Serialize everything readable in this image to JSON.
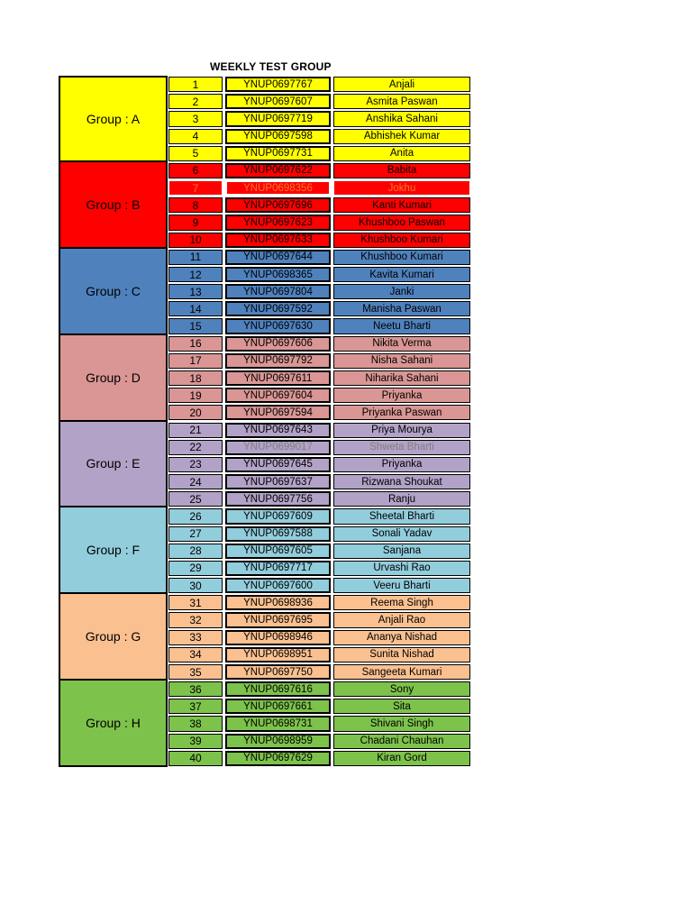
{
  "page": {
    "title": "WEEKLY TEST GROUP"
  },
  "table": {
    "groups": [
      {
        "label": "Group : A",
        "color": "#FFFF00",
        "rows": [
          {
            "no": "1",
            "id": "YNUP0697767",
            "name": "Anjali"
          },
          {
            "no": "2",
            "id": "YNUP0697607",
            "name": "Asmita Paswan"
          },
          {
            "no": "3",
            "id": "YNUP0697719",
            "name": "Anshika Sahani"
          },
          {
            "no": "4",
            "id": "YNUP0697598",
            "name": "Abhishek Kumar"
          },
          {
            "no": "5",
            "id": "YNUP0697731",
            "name": "Anita"
          }
        ]
      },
      {
        "label": "Group : B",
        "color": "#FF0000",
        "rows": [
          {
            "no": "6",
            "id": "YNUP0697622",
            "name": "Babita"
          },
          {
            "no": "7",
            "id": "YNUP0698356",
            "name": "Jokhu",
            "num_color": "#ED7D31",
            "id_color": "#ED7D31",
            "name_color": "#ED7D31",
            "border_color": "#FFFFFF"
          },
          {
            "no": "8",
            "id": "YNUP0697696",
            "name": "Kanti Kumari"
          },
          {
            "no": "9",
            "id": "YNUP0697623",
            "name": "Khushboo Paswan"
          },
          {
            "no": "10",
            "id": "YNUP0697633",
            "name": "Khushboo Kumari"
          }
        ]
      },
      {
        "label": "Group : C",
        "color": "#4F81BD",
        "rows": [
          {
            "no": "11",
            "id": "YNUP0697644",
            "name": "Khushboo Kumari"
          },
          {
            "no": "12",
            "id": "YNUP0698365",
            "name": "Kavita Kumari"
          },
          {
            "no": "13",
            "id": "YNUP0697804",
            "name": "Janki"
          },
          {
            "no": "14",
            "id": "YNUP0697592",
            "name": "Manisha Paswan"
          },
          {
            "no": "15",
            "id": "YNUP0697630",
            "name": "Neetu Bharti"
          }
        ]
      },
      {
        "label": "Group : D",
        "color": "#D99694",
        "rows": [
          {
            "no": "16",
            "id": "YNUP0697606",
            "name": "Nikita Verma"
          },
          {
            "no": "17",
            "id": "YNUP0697792",
            "name": "Nisha Sahani"
          },
          {
            "no": "18",
            "id": "YNUP0697611",
            "name": "Niharika Sahani"
          },
          {
            "no": "19",
            "id": "YNUP0697604",
            "name": "Priyanka"
          },
          {
            "no": "20",
            "id": "YNUP0697594",
            "name": "Priyanka Paswan"
          }
        ]
      },
      {
        "label": "Group : E",
        "color": "#B2A2C7",
        "rows": [
          {
            "no": "21",
            "id": "YNUP0697643",
            "name": "Priya Mourya"
          },
          {
            "no": "22",
            "id": "YNUP0699017",
            "name": "Shweta Bharti",
            "id_color": "#808080",
            "name_color": "#808080"
          },
          {
            "no": "23",
            "id": "YNUP0697645",
            "name": "Priyanka"
          },
          {
            "no": "24",
            "id": "YNUP0697637",
            "name": "Rizwana Shoukat"
          },
          {
            "no": "25",
            "id": "YNUP0697756",
            "name": "Ranju"
          }
        ]
      },
      {
        "label": "Group : F",
        "color": "#92CDDC",
        "rows": [
          {
            "no": "26",
            "id": "YNUP0697609",
            "name": "Sheetal Bharti"
          },
          {
            "no": "27",
            "id": "YNUP0697588",
            "name": "Sonali Yadav"
          },
          {
            "no": "28",
            "id": "YNUP0697605",
            "name": "Sanjana"
          },
          {
            "no": "29",
            "id": "YNUP0697717",
            "name": "Urvashi Rao"
          },
          {
            "no": "30",
            "id": "YNUP0697600",
            "name": "Veeru Bharti"
          }
        ]
      },
      {
        "label": "Group : G",
        "color": "#FAC090",
        "rows": [
          {
            "no": "31",
            "id": "YNUP0698936",
            "name": "Reema Singh"
          },
          {
            "no": "32",
            "id": "YNUP0697695",
            "name": "Anjali Rao"
          },
          {
            "no": "33",
            "id": "YNUP0698946",
            "name": "Ananya Nishad"
          },
          {
            "no": "34",
            "id": "YNUP0698951",
            "name": "Sunita Nishad"
          },
          {
            "no": "35",
            "id": "YNUP0697750",
            "name": "Sangeeta Kumari"
          }
        ]
      },
      {
        "label": "Group : H",
        "color": "#7DC24B",
        "rows": [
          {
            "no": "36",
            "id": "YNUP0697616",
            "name": "Sony"
          },
          {
            "no": "37",
            "id": "YNUP0697661",
            "name": "Sita"
          },
          {
            "no": "38",
            "id": "YNUP0698731",
            "name": "Shivani Singh"
          },
          {
            "no": "39",
            "id": "YNUP0698959",
            "name": "Chadani Chauhan"
          },
          {
            "no": "40",
            "id": "YNUP0697629",
            "name": "Kiran Gord"
          }
        ]
      }
    ]
  }
}
